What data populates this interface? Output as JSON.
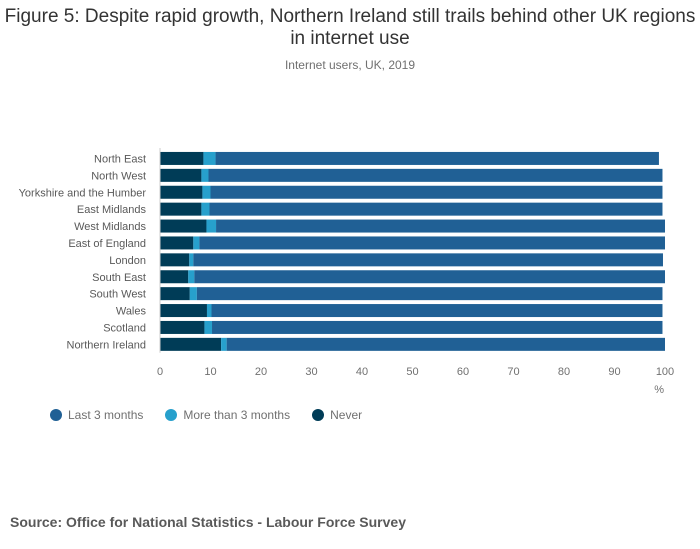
{
  "title": "Figure 5: Despite rapid growth, Northern Ireland still trails behind other UK regions in internet use",
  "subtitle": "Internet users, UK, 2019",
  "source": "Source: Office for National Statistics - Labour Force Survey",
  "colors": {
    "last3": "#206095",
    "more3": "#27a0cc",
    "never": "#003c57"
  },
  "chart_data": {
    "type": "bar",
    "orientation": "horizontal",
    "stacked": true,
    "categories": [
      "North East",
      "North West",
      "Yorkshire and the Humber",
      "East Midlands",
      "West Midlands",
      "East of England",
      "London",
      "South East",
      "South West",
      "Wales",
      "Scotland",
      "Northern Ireland"
    ],
    "series": [
      {
        "name": "Never",
        "color": "#003c57",
        "values": [
          8.6,
          8.2,
          8.4,
          8.2,
          9.2,
          6.6,
          5.8,
          5.6,
          5.9,
          9.3,
          8.8,
          12.1
        ]
      },
      {
        "name": "More than 3 months",
        "color": "#27a0cc",
        "values": [
          2.4,
          1.4,
          1.6,
          1.6,
          1.9,
          1.2,
          0.8,
          1.2,
          1.4,
          0.9,
          1.5,
          1.1
        ]
      },
      {
        "name": "Last 3 months",
        "color": "#206095",
        "values": [
          87.8,
          89.9,
          89.5,
          89.7,
          88.9,
          92.2,
          93.0,
          93.2,
          92.2,
          89.3,
          89.2,
          86.8
        ]
      }
    ],
    "legend_order": [
      "Last 3 months",
      "More than 3 months",
      "Never"
    ],
    "xlabel": "%",
    "xlim": [
      0,
      100
    ],
    "xticks": [
      0,
      10,
      20,
      30,
      40,
      50,
      60,
      70,
      80,
      90,
      100
    ],
    "grid": false,
    "legend_position": "bottom-left"
  }
}
